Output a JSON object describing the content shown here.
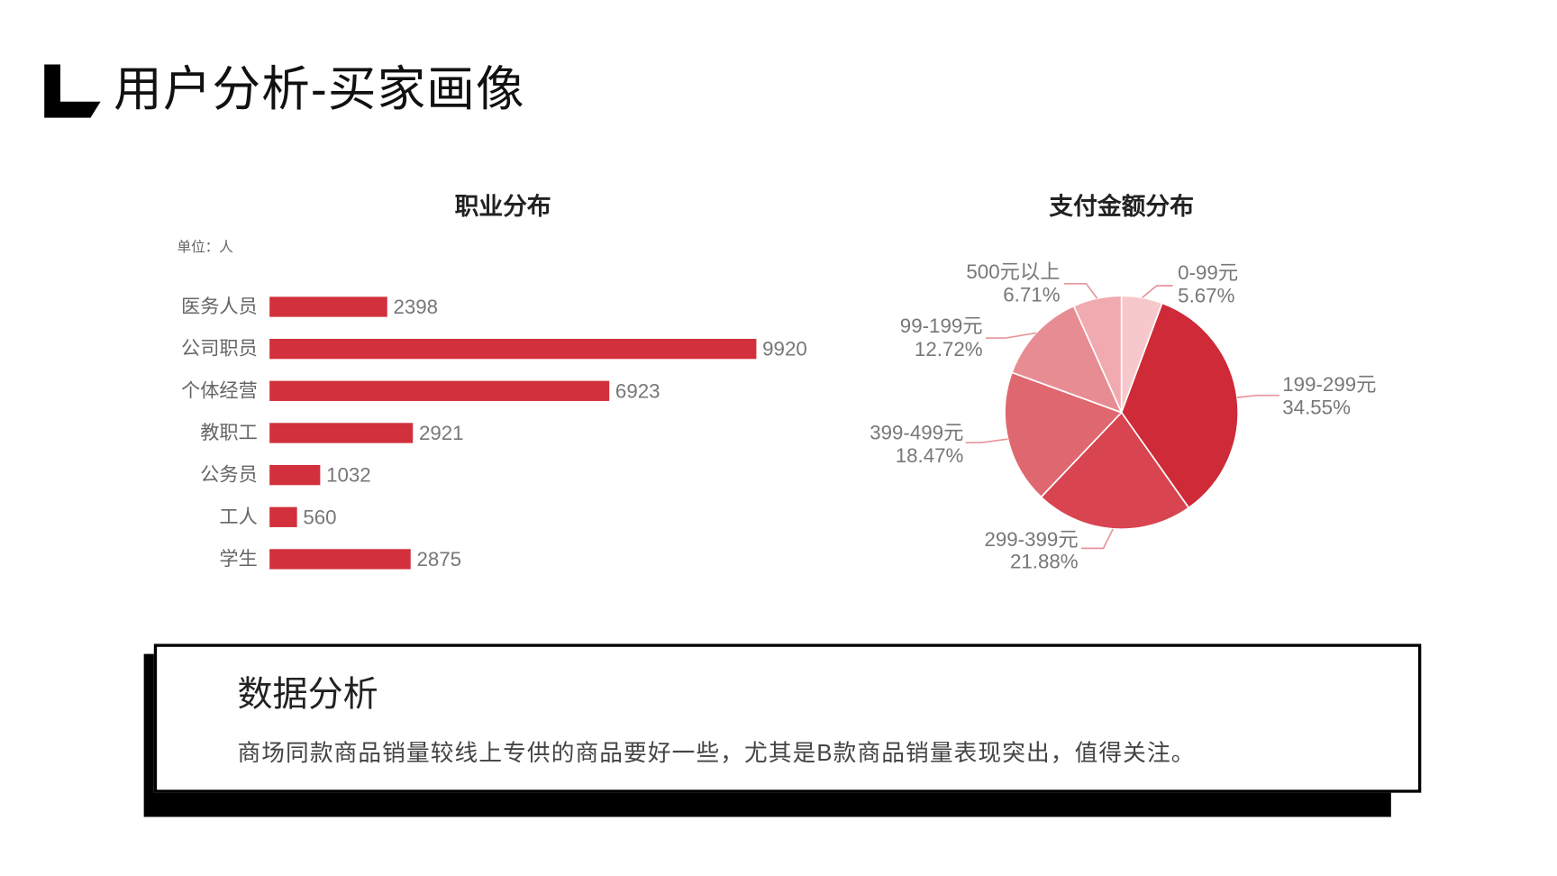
{
  "header": {
    "logo_icon": "corner-bracket-logo-icon",
    "title": "用户分析-买家画像"
  },
  "chart_data": [
    {
      "type": "bar",
      "orientation": "horizontal",
      "title": "职业分布",
      "unit_label": "单位：人",
      "categories": [
        "医务人员",
        "公司职员",
        "个体经营",
        "教职工",
        "公务员",
        "工人",
        "学生"
      ],
      "values": [
        2398,
        9920,
        6923,
        2921,
        1032,
        560,
        2875
      ],
      "color": "#d2303c",
      "grid": false,
      "legend": "none"
    },
    {
      "type": "pie",
      "title": "支付金额分布",
      "labels": [
        "0-99元",
        "199-299元",
        "299-399元",
        "399-499元",
        "99-199元",
        "500元以上"
      ],
      "values": [
        5.67,
        34.55,
        21.88,
        18.47,
        12.72,
        6.71
      ],
      "value_unit": "%",
      "colors": [
        "#f7c8cb",
        "#cf2a37",
        "#d84450",
        "#df6770",
        "#e88c93",
        "#f0aab0"
      ],
      "legend": "none"
    }
  ],
  "analysis": {
    "heading": "数据分析",
    "body": "商场同款商品销量较线上专供的商品要好一些，尤其是B款商品销量表现突出，值得关注。"
  }
}
